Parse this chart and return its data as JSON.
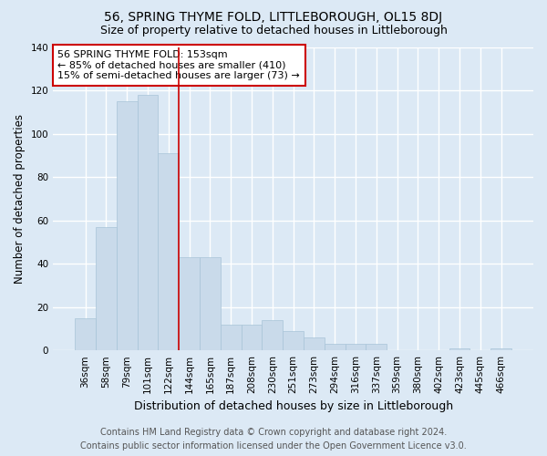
{
  "title": "56, SPRING THYME FOLD, LITTLEBOROUGH, OL15 8DJ",
  "subtitle": "Size of property relative to detached houses in Littleborough",
  "xlabel": "Distribution of detached houses by size in Littleborough",
  "ylabel": "Number of detached properties",
  "categories": [
    "36sqm",
    "58sqm",
    "79sqm",
    "101sqm",
    "122sqm",
    "144sqm",
    "165sqm",
    "187sqm",
    "208sqm",
    "230sqm",
    "251sqm",
    "273sqm",
    "294sqm",
    "316sqm",
    "337sqm",
    "359sqm",
    "380sqm",
    "402sqm",
    "423sqm",
    "445sqm",
    "466sqm"
  ],
  "values": [
    15,
    57,
    115,
    118,
    91,
    43,
    43,
    12,
    12,
    14,
    9,
    6,
    3,
    3,
    3,
    0,
    0,
    0,
    1,
    0,
    1
  ],
  "bar_color": "#c9daea",
  "bar_edge_color": "#a8c4d8",
  "annotation_text": "56 SPRING THYME FOLD: 153sqm\n← 85% of detached houses are smaller (410)\n15% of semi-detached houses are larger (73) →",
  "annotation_box_color": "#ffffff",
  "annotation_border_color": "#cc0000",
  "redline_index": 5,
  "footer_line1": "Contains HM Land Registry data © Crown copyright and database right 2024.",
  "footer_line2": "Contains public sector information licensed under the Open Government Licence v3.0.",
  "bg_color": "#dce9f5",
  "plot_bg_color": "#dce9f5",
  "grid_color": "#ffffff",
  "ylim": [
    0,
    140
  ],
  "yticks": [
    0,
    20,
    40,
    60,
    80,
    100,
    120,
    140
  ],
  "title_fontsize": 10,
  "subtitle_fontsize": 9,
  "xlabel_fontsize": 9,
  "ylabel_fontsize": 8.5,
  "tick_fontsize": 7.5,
  "annotation_fontsize": 8,
  "footer_fontsize": 7
}
